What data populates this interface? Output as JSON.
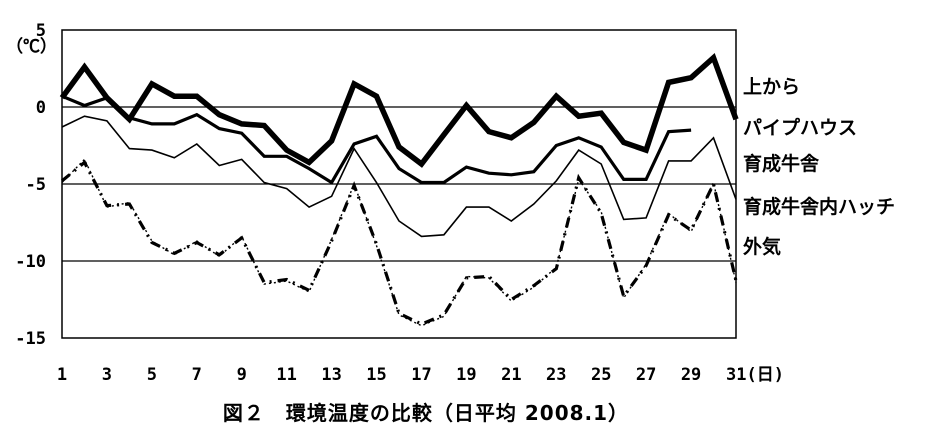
{
  "caption": "図２　環境温度の比較（日平均 2008.1）",
  "chart_data": {
    "type": "line",
    "title": "",
    "caption": "図２　環境温度の比較（日平均 2008.1）",
    "ylabel": "（℃）",
    "xlabel": "(日)",
    "ylim": [
      -15,
      5
    ],
    "xlim": [
      1,
      31
    ],
    "yticks": [
      5,
      0,
      -5,
      -10,
      -15
    ],
    "xticks": [
      1,
      3,
      5,
      7,
      9,
      11,
      13,
      15,
      17,
      19,
      21,
      23,
      25,
      27,
      29,
      31
    ],
    "xtick_labels": [
      "1",
      "3",
      "5",
      "7",
      "9",
      "11",
      "13",
      "15",
      "17",
      "19",
      "21",
      "23",
      "25",
      "27",
      "29",
      "31(日)"
    ],
    "grid": "horizontal lines at 0, -5, -10",
    "legend_placement": "right",
    "x": [
      1,
      2,
      3,
      4,
      5,
      6,
      7,
      8,
      9,
      10,
      11,
      12,
      13,
      14,
      15,
      16,
      17,
      18,
      19,
      20,
      21,
      22,
      23,
      24,
      25,
      26,
      27,
      28,
      29,
      30,
      31
    ],
    "series": [
      {
        "name": "上から",
        "color": "#000000",
        "style": "bold",
        "values": [
          0.6,
          2.6,
          0.6,
          -0.8,
          1.5,
          0.7,
          0.7,
          -0.5,
          -1.1,
          -1.2,
          -2.8,
          -3.6,
          -2.2,
          1.5,
          0.7,
          -2.6,
          -3.7,
          -1.8,
          0.1,
          -1.6,
          -2.0,
          -1.0,
          0.7,
          -0.6,
          -0.4,
          -2.3,
          -2.8,
          1.6,
          1.9,
          3.2,
          -0.8
        ]
      },
      {
        "name": "パイプハウス",
        "color": "#000000",
        "style": "medium",
        "values": [
          0.7,
          0.1,
          0.6,
          -0.7,
          -1.1,
          -1.1,
          -0.5,
          -1.4,
          -1.7,
          -3.2,
          -3.2,
          -4.0,
          -4.9,
          -2.4,
          -1.9,
          -4.0,
          -4.9,
          -4.9,
          -3.9,
          -4.3,
          -4.4,
          -4.2,
          -2.5,
          -2.0,
          -2.6,
          -4.7,
          -4.7,
          -1.6,
          -1.5,
          null,
          null
        ]
      },
      {
        "name": "育成牛舎",
        "color": "#000000",
        "style": "thin",
        "values": [
          -1.3,
          -0.6,
          -0.9,
          -2.7,
          -2.8,
          -3.3,
          -2.4,
          -3.8,
          -3.4,
          -4.9,
          -5.3,
          -6.5,
          -5.8,
          -2.7,
          -4.9,
          -7.4,
          -8.4,
          -8.3,
          -6.5,
          -6.5,
          -7.4,
          -6.3,
          -4.8,
          -2.8,
          -3.7,
          -7.3,
          -7.2,
          -3.5,
          -3.5,
          -2.0,
          -6.0
        ]
      },
      {
        "name": "育成牛舎内ハッチ",
        "color": "#000000",
        "style": "dotted",
        "values": [
          -4.9,
          -3.4,
          -6.5,
          -6.2,
          -8.7,
          -9.6,
          -8.7,
          -9.7,
          -8.4,
          -11.5,
          -11.3,
          -12.0,
          -8.6,
          -5.0,
          -9.0,
          -13.5,
          -14.2,
          -13.6,
          -11.0,
          -11.1,
          -12.6,
          -11.7,
          -10.4,
          -4.7,
          -6.8,
          -12.4,
          -10.2,
          -6.9,
          -8.1,
          -4.9,
          -11.4
        ]
      },
      {
        "name": "外気",
        "color": "#000000",
        "style": "dash-dot",
        "values": [
          -4.8,
          -3.6,
          -6.4,
          -6.3,
          -8.8,
          -9.5,
          -8.8,
          -9.6,
          -8.5,
          -11.4,
          -11.2,
          -11.9,
          -8.7,
          -5.1,
          -8.9,
          -13.4,
          -14.1,
          -13.5,
          -11.1,
          -11.0,
          -12.5,
          -11.6,
          -10.5,
          -4.6,
          -6.9,
          -12.3,
          -10.3,
          -7.0,
          -8.0,
          -5.0,
          -11.3
        ]
      }
    ]
  }
}
